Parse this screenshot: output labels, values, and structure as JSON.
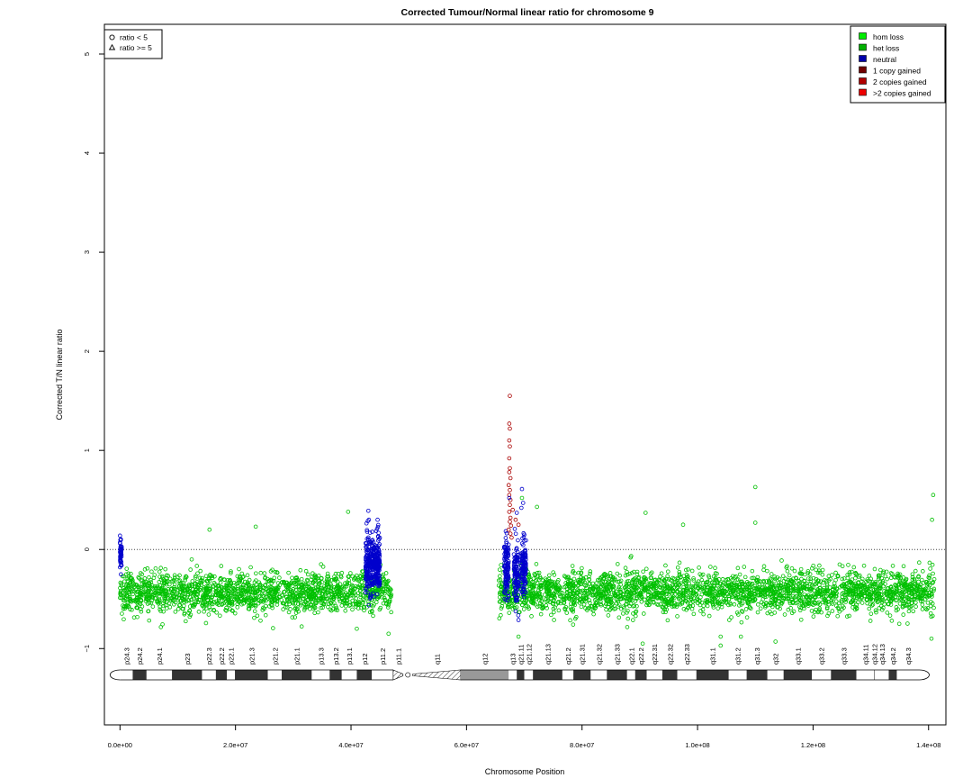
{
  "chart_data": {
    "type": "scatter",
    "title": "Corrected Tumour/Normal linear ratio for chromosome  9",
    "xlabel": "Chromosome Position",
    "ylabel": "Corrected T/N linear ratio",
    "xlim": [
      -2700000,
      143000000
    ],
    "ylim": [
      -1.77,
      5.3
    ],
    "x_ticks": [
      0,
      20000000,
      40000000,
      60000000,
      80000000,
      100000000,
      120000000,
      140000000
    ],
    "x_tick_labels": [
      "0.0e+00",
      "2.0e+07",
      "4.0e+07",
      "6.0e+07",
      "8.0e+07",
      "1.0e+08",
      "1.2e+08",
      "1.4e+08"
    ],
    "y_ticks": [
      -1,
      0,
      1,
      2,
      3,
      4,
      5
    ],
    "y_tick_labels": [
      "−1",
      "0",
      "1",
      "2",
      "3",
      "4",
      "5"
    ],
    "reference_line": 0,
    "shape_legend": {
      "placement": "top-left",
      "entries": [
        {
          "symbol": "circle",
          "label": "ratio < 5"
        },
        {
          "symbol": "triangle",
          "label": "ratio >= 5"
        }
      ]
    },
    "legend": {
      "placement": "top-right",
      "entries": [
        {
          "label": "hom loss",
          "color": "#00ee00"
        },
        {
          "label": "het loss",
          "color": "#00b000"
        },
        {
          "label": "neutral",
          "color": "#0000aa"
        },
        {
          "label": "1 copy gained",
          "color": "#700000"
        },
        {
          "label": "2 copies gained",
          "color": "#b00000"
        },
        {
          "label": ">2 copies gained",
          "color": "#ee0000"
        }
      ]
    },
    "colors": {
      "het_loss": "#00c000",
      "neutral": "#0000cc",
      "gain": "#aa0000",
      "ref_line": "#444444"
    },
    "clusters": [
      {
        "state": "het loss",
        "x_range": [
          0,
          47000000
        ],
        "y_center": -0.44,
        "y_spread": 0.13
      },
      {
        "state": "het loss",
        "x_range": [
          65500000,
          141000000
        ],
        "y_center": -0.43,
        "y_spread": 0.13
      }
    ],
    "neutral_regions": [
      {
        "x_range": [
          0,
          300000
        ],
        "y_center": -0.05,
        "y_spread": 0.09
      },
      {
        "x_range": [
          42500000,
          45000000
        ],
        "y_center": -0.15,
        "y_spread": 0.15
      },
      {
        "x_range": [
          66500000,
          67300000
        ],
        "y_center": -0.2,
        "y_spread": 0.17
      },
      {
        "x_range": [
          68200000,
          69000000
        ],
        "y_center": -0.25,
        "y_spread": 0.17
      },
      {
        "x_range": [
          69500000,
          70300000
        ],
        "y_center": -0.2,
        "y_spread": 0.15
      }
    ],
    "outliers": [
      {
        "x": 67500000,
        "y": 1.55,
        "state": "gain"
      },
      {
        "x": 67400000,
        "y": 1.27,
        "state": "gain"
      },
      {
        "x": 67500000,
        "y": 1.22,
        "state": "gain"
      },
      {
        "x": 67400000,
        "y": 1.1,
        "state": "gain"
      },
      {
        "x": 67500000,
        "y": 1.04,
        "state": "gain"
      },
      {
        "x": 67400000,
        "y": 0.92,
        "state": "gain"
      },
      {
        "x": 67500000,
        "y": 0.82,
        "state": "gain"
      },
      {
        "x": 67400000,
        "y": 0.78,
        "state": "gain"
      },
      {
        "x": 67600000,
        "y": 0.72,
        "state": "gain"
      },
      {
        "x": 67300000,
        "y": 0.65,
        "state": "gain"
      },
      {
        "x": 67500000,
        "y": 0.6,
        "state": "gain"
      },
      {
        "x": 67400000,
        "y": 0.55,
        "state": "gain"
      },
      {
        "x": 67600000,
        "y": 0.5,
        "state": "gain"
      },
      {
        "x": 67500000,
        "y": 0.45,
        "state": "gain"
      },
      {
        "x": 67400000,
        "y": 0.38,
        "state": "gain"
      },
      {
        "x": 67600000,
        "y": 0.32,
        "state": "gain"
      },
      {
        "x": 67500000,
        "y": 0.28,
        "state": "gain"
      },
      {
        "x": 67700000,
        "y": 0.24,
        "state": "gain"
      },
      {
        "x": 67300000,
        "y": 0.2,
        "state": "gain"
      },
      {
        "x": 67600000,
        "y": 0.16,
        "state": "gain"
      },
      {
        "x": 68000000,
        "y": 0.4,
        "state": "gain"
      },
      {
        "x": 68500000,
        "y": 0.3,
        "state": "gain"
      },
      {
        "x": 69000000,
        "y": 0.25,
        "state": "gain"
      },
      {
        "x": 67800000,
        "y": 0.12,
        "state": "gain"
      },
      {
        "x": 69600000,
        "y": 0.61,
        "state": "neutral"
      },
      {
        "x": 69800000,
        "y": 0.47,
        "state": "neutral"
      },
      {
        "x": 69500000,
        "y": 0.42,
        "state": "neutral"
      },
      {
        "x": 68700000,
        "y": 0.37,
        "state": "neutral"
      },
      {
        "x": 67400000,
        "y": 0.52,
        "state": "neutral"
      },
      {
        "x": 43000000,
        "y": 0.39,
        "state": "neutral"
      },
      {
        "x": 44600000,
        "y": 0.3,
        "state": "neutral"
      },
      {
        "x": 43100000,
        "y": 0.3,
        "state": "neutral"
      },
      {
        "x": 0,
        "y": 0.14,
        "state": "neutral"
      },
      {
        "x": 0,
        "y": 0.07,
        "state": "neutral"
      },
      {
        "x": 69600000,
        "y": 0.52,
        "state": "het loss"
      },
      {
        "x": 72200000,
        "y": 0.43,
        "state": "het loss"
      },
      {
        "x": 110000000,
        "y": 0.63,
        "state": "het loss"
      },
      {
        "x": 110000000,
        "y": 0.27,
        "state": "het loss"
      },
      {
        "x": 140800000,
        "y": 0.55,
        "state": "het loss"
      },
      {
        "x": 140600000,
        "y": 0.3,
        "state": "het loss"
      },
      {
        "x": 91000000,
        "y": 0.37,
        "state": "het loss"
      },
      {
        "x": 97500000,
        "y": 0.25,
        "state": "het loss"
      },
      {
        "x": 39500000,
        "y": 0.38,
        "state": "het loss"
      },
      {
        "x": 23500000,
        "y": 0.23,
        "state": "het loss"
      },
      {
        "x": 15500000,
        "y": 0.2,
        "state": "het loss"
      },
      {
        "x": 104000000,
        "y": -0.88,
        "state": "het loss"
      },
      {
        "x": 104000000,
        "y": -0.97,
        "state": "het loss"
      },
      {
        "x": 107500000,
        "y": -0.88,
        "state": "het loss"
      },
      {
        "x": 140500000,
        "y": -0.9,
        "state": "het loss"
      },
      {
        "x": 90500000,
        "y": -0.95,
        "state": "het loss"
      },
      {
        "x": 113500000,
        "y": -0.93,
        "state": "het loss"
      },
      {
        "x": 41000000,
        "y": -0.8,
        "state": "het loss"
      },
      {
        "x": 69000000,
        "y": -0.88,
        "state": "het loss"
      },
      {
        "x": 46500000,
        "y": -0.85,
        "state": "het loss"
      }
    ],
    "ideogram": {
      "bands": [
        {
          "name": "p24.3",
          "start": 0,
          "end": 2200000,
          "stain": "gneg"
        },
        {
          "name": "p24.2",
          "start": 2200000,
          "end": 4600000,
          "stain": "gpos"
        },
        {
          "name": "p24.1",
          "start": 4600000,
          "end": 9000000,
          "stain": "gneg"
        },
        {
          "name": "p23",
          "start": 9000000,
          "end": 14200000,
          "stain": "gpos"
        },
        {
          "name": "p22.3",
          "start": 14200000,
          "end": 16600000,
          "stain": "gneg"
        },
        {
          "name": "p22.2",
          "start": 16600000,
          "end": 18500000,
          "stain": "gpos"
        },
        {
          "name": "p22.1",
          "start": 18500000,
          "end": 19900000,
          "stain": "gneg"
        },
        {
          "name": "p21.3",
          "start": 19900000,
          "end": 25600000,
          "stain": "gpos"
        },
        {
          "name": "p21.2",
          "start": 25600000,
          "end": 28000000,
          "stain": "gneg"
        },
        {
          "name": "p21.1",
          "start": 28000000,
          "end": 33200000,
          "stain": "gpos"
        },
        {
          "name": "p13.3",
          "start": 33200000,
          "end": 36300000,
          "stain": "gneg"
        },
        {
          "name": "p13.2",
          "start": 36300000,
          "end": 38400000,
          "stain": "gpos"
        },
        {
          "name": "p13.1",
          "start": 38400000,
          "end": 41000000,
          "stain": "gneg"
        },
        {
          "name": "p12",
          "start": 41000000,
          "end": 43600000,
          "stain": "gpos"
        },
        {
          "name": "p11.2",
          "start": 43600000,
          "end": 47300000,
          "stain": "gneg"
        },
        {
          "name": "p11.1",
          "start": 47300000,
          "end": 49000000,
          "stain": "acen"
        },
        {
          "name": "q11",
          "start": 50700000,
          "end": 59000000,
          "stain": "acen"
        },
        {
          "name": "q12",
          "start": 59000000,
          "end": 67300000,
          "stain": "gvar"
        },
        {
          "name": "q13",
          "start": 67300000,
          "end": 68700000,
          "stain": "gneg"
        },
        {
          "name": "q21.11",
          "start": 68700000,
          "end": 70000000,
          "stain": "gpos"
        },
        {
          "name": "q21.12",
          "start": 70000000,
          "end": 71500000,
          "stain": "gneg"
        },
        {
          "name": "q21.13",
          "start": 71500000,
          "end": 76600000,
          "stain": "gpos"
        },
        {
          "name": "q21.2",
          "start": 76600000,
          "end": 78500000,
          "stain": "gneg"
        },
        {
          "name": "q21.31",
          "start": 78500000,
          "end": 81500000,
          "stain": "gpos"
        },
        {
          "name": "q21.32",
          "start": 81500000,
          "end": 84300000,
          "stain": "gneg"
        },
        {
          "name": "q21.33",
          "start": 84300000,
          "end": 87800000,
          "stain": "gpos"
        },
        {
          "name": "q22.1",
          "start": 87800000,
          "end": 89200000,
          "stain": "gneg"
        },
        {
          "name": "q22.2",
          "start": 89200000,
          "end": 91200000,
          "stain": "gpos"
        },
        {
          "name": "q22.31",
          "start": 91200000,
          "end": 93900000,
          "stain": "gneg"
        },
        {
          "name": "q22.32",
          "start": 93900000,
          "end": 96500000,
          "stain": "gpos"
        },
        {
          "name": "q22.33",
          "start": 96500000,
          "end": 99800000,
          "stain": "gneg"
        },
        {
          "name": "q31.1",
          "start": 99800000,
          "end": 105400000,
          "stain": "gpos"
        },
        {
          "name": "q31.2",
          "start": 105400000,
          "end": 108500000,
          "stain": "gneg"
        },
        {
          "name": "q31.3",
          "start": 108500000,
          "end": 112100000,
          "stain": "gpos"
        },
        {
          "name": "q32",
          "start": 112100000,
          "end": 114900000,
          "stain": "gneg"
        },
        {
          "name": "q33.1",
          "start": 114900000,
          "end": 119800000,
          "stain": "gpos"
        },
        {
          "name": "q33.2",
          "start": 119800000,
          "end": 123100000,
          "stain": "gneg"
        },
        {
          "name": "q33.3",
          "start": 123100000,
          "end": 127500000,
          "stain": "gpos"
        },
        {
          "name": "q34.11",
          "start": 127500000,
          "end": 130600000,
          "stain": "gneg"
        },
        {
          "name": "q34.12",
          "start": 130600000,
          "end": 130700000,
          "stain": "gpos"
        },
        {
          "name": "q34.13",
          "start": 130700000,
          "end": 133100000,
          "stain": "gneg"
        },
        {
          "name": "q34.2",
          "start": 133100000,
          "end": 134500000,
          "stain": "gpos"
        },
        {
          "name": "q34.3",
          "start": 134500000,
          "end": 138400000,
          "stain": "gneg"
        }
      ],
      "end": 138400000
    }
  }
}
